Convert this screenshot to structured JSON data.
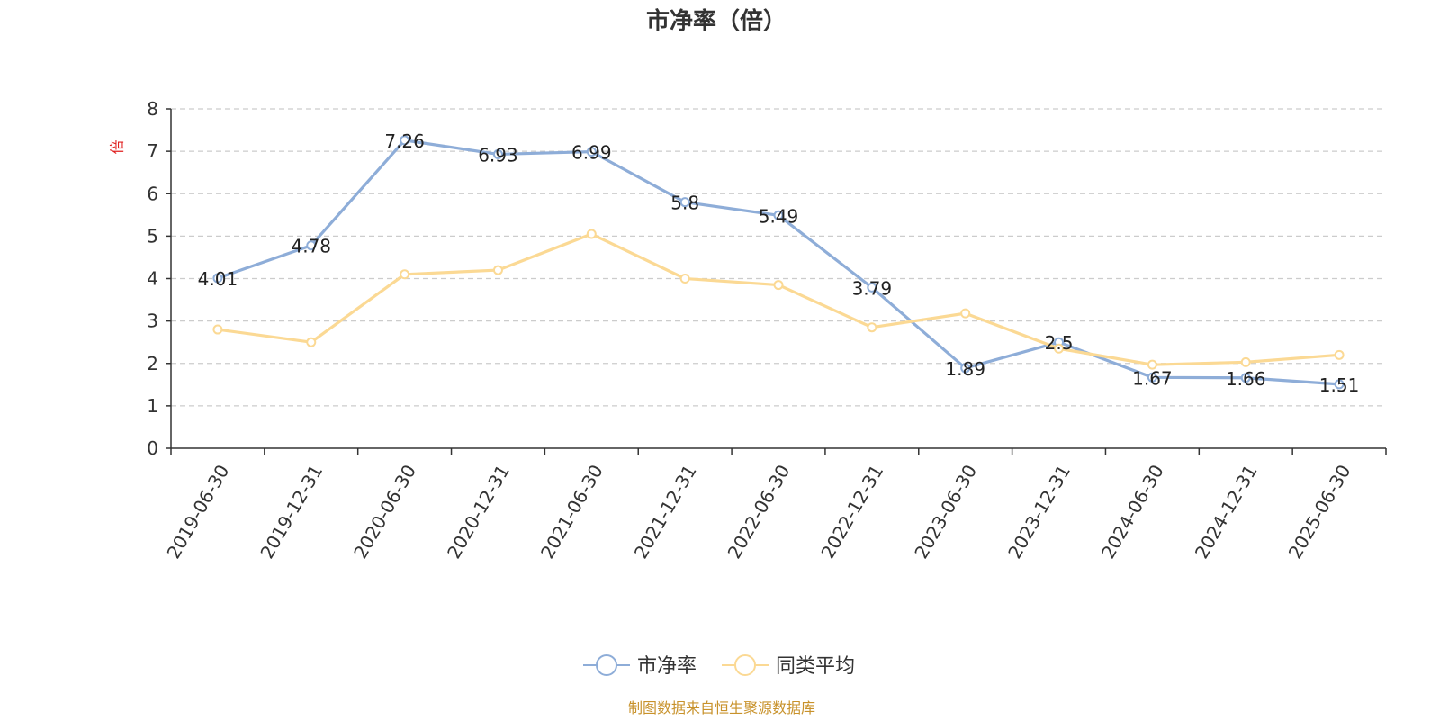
{
  "colors": {
    "series1": "#8eadd8",
    "series2": "#fbd994",
    "unit_label": "#e02020",
    "source_text": "#c8922b",
    "grid": "#cccccc",
    "axis": "#333333"
  },
  "chart_data": {
    "type": "line",
    "title": "市净率（倍）",
    "ylabel": "倍",
    "xlabel": "",
    "ylim": [
      0,
      8
    ],
    "yticks": [
      0,
      1,
      2,
      3,
      4,
      5,
      6,
      7,
      8
    ],
    "grid": true,
    "legend_position": "bottom-center",
    "categories": [
      "2019-06-30",
      "2019-12-31",
      "2020-06-30",
      "2020-12-31",
      "2021-06-30",
      "2021-12-31",
      "2022-06-30",
      "2022-12-31",
      "2023-06-30",
      "2023-12-31",
      "2024-06-30",
      "2024-12-31",
      "2025-06-30"
    ],
    "series": [
      {
        "name": "市净率",
        "values": [
          4.01,
          4.78,
          7.26,
          6.93,
          6.99,
          5.8,
          5.49,
          3.79,
          1.89,
          2.5,
          1.67,
          1.66,
          1.51
        ],
        "labels": [
          "4.01",
          "4.78",
          "7.26",
          "6.93",
          "6.99",
          "5.8",
          "5.49",
          "3.79",
          "1.89",
          "2.5",
          "1.67",
          "1.66",
          "1.51"
        ],
        "color": "#8eadd8"
      },
      {
        "name": "同类平均",
        "values": [
          2.8,
          2.5,
          4.1,
          4.2,
          5.05,
          4.0,
          3.85,
          2.85,
          3.18,
          2.35,
          1.97,
          2.03,
          2.2
        ],
        "color": "#fbd994"
      }
    ]
  },
  "source": "制图数据来自恒生聚源数据库"
}
